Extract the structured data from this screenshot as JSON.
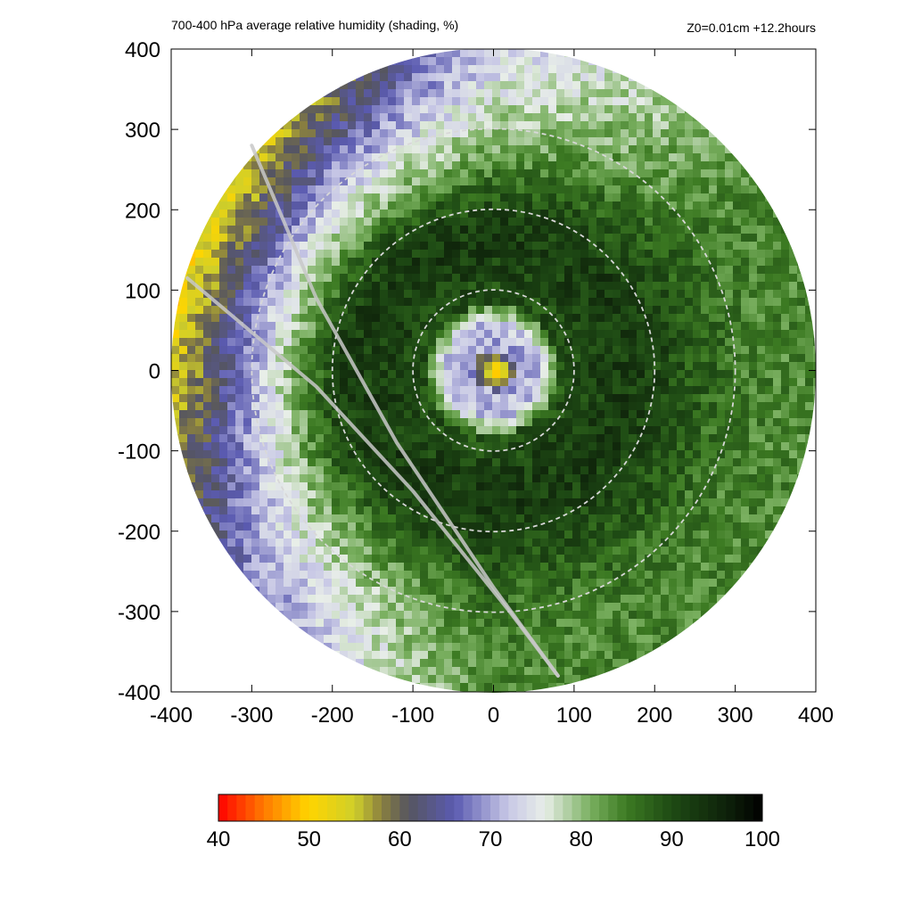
{
  "chart_data": {
    "type": "heatmap",
    "title": "700-400 hPa average relative humidity (shading, %)",
    "subtitle": "Z0=0.01cm  +12.2hours",
    "xlabel": "",
    "ylabel": "",
    "xlim": [
      -400,
      400
    ],
    "ylim": [
      -400,
      400
    ],
    "x_ticks": [
      "-400",
      "-300",
      "-200",
      "-100",
      "0",
      "100",
      "200",
      "300",
      "400"
    ],
    "y_ticks": [
      "400",
      "300",
      "200",
      "100",
      "0",
      "-100",
      "-200",
      "-300",
      "-400"
    ],
    "domain_radius": 400,
    "range_rings": [
      100,
      200,
      300
    ],
    "center_value": 50,
    "eye_radius": 25,
    "moist_ring_inner": 100,
    "moist_ring_outer": 300,
    "dry_sector": "west",
    "track_lines": [
      {
        "points": [
          [
            -300,
            280
          ],
          [
            -220,
            90
          ],
          [
            -120,
            -90
          ],
          [
            0,
            -270
          ],
          [
            80,
            -380
          ]
        ]
      },
      {
        "points": [
          [
            -380,
            115
          ],
          [
            -220,
            -20
          ],
          [
            -100,
            -150
          ],
          [
            20,
            -300
          ],
          [
            80,
            -380
          ]
        ]
      }
    ],
    "colorbar": {
      "min": 40,
      "max": 100,
      "ticks": [
        "40",
        "50",
        "60",
        "70",
        "80",
        "90",
        "100"
      ],
      "stops": [
        {
          "value": 40,
          "color": "#ff0000"
        },
        {
          "value": 45,
          "color": "#ff7a00"
        },
        {
          "value": 50,
          "color": "#ffd500"
        },
        {
          "value": 55,
          "color": "#cfcf2a"
        },
        {
          "value": 58,
          "color": "#8a8040"
        },
        {
          "value": 61,
          "color": "#555560"
        },
        {
          "value": 66,
          "color": "#5a5ab0"
        },
        {
          "value": 72,
          "color": "#c8c8e6"
        },
        {
          "value": 76,
          "color": "#e8eee8"
        },
        {
          "value": 81,
          "color": "#7ab060"
        },
        {
          "value": 85,
          "color": "#3c7a22"
        },
        {
          "value": 90,
          "color": "#1e4a14"
        },
        {
          "value": 96,
          "color": "#0e220a"
        },
        {
          "value": 100,
          "color": "#000000"
        }
      ]
    }
  }
}
